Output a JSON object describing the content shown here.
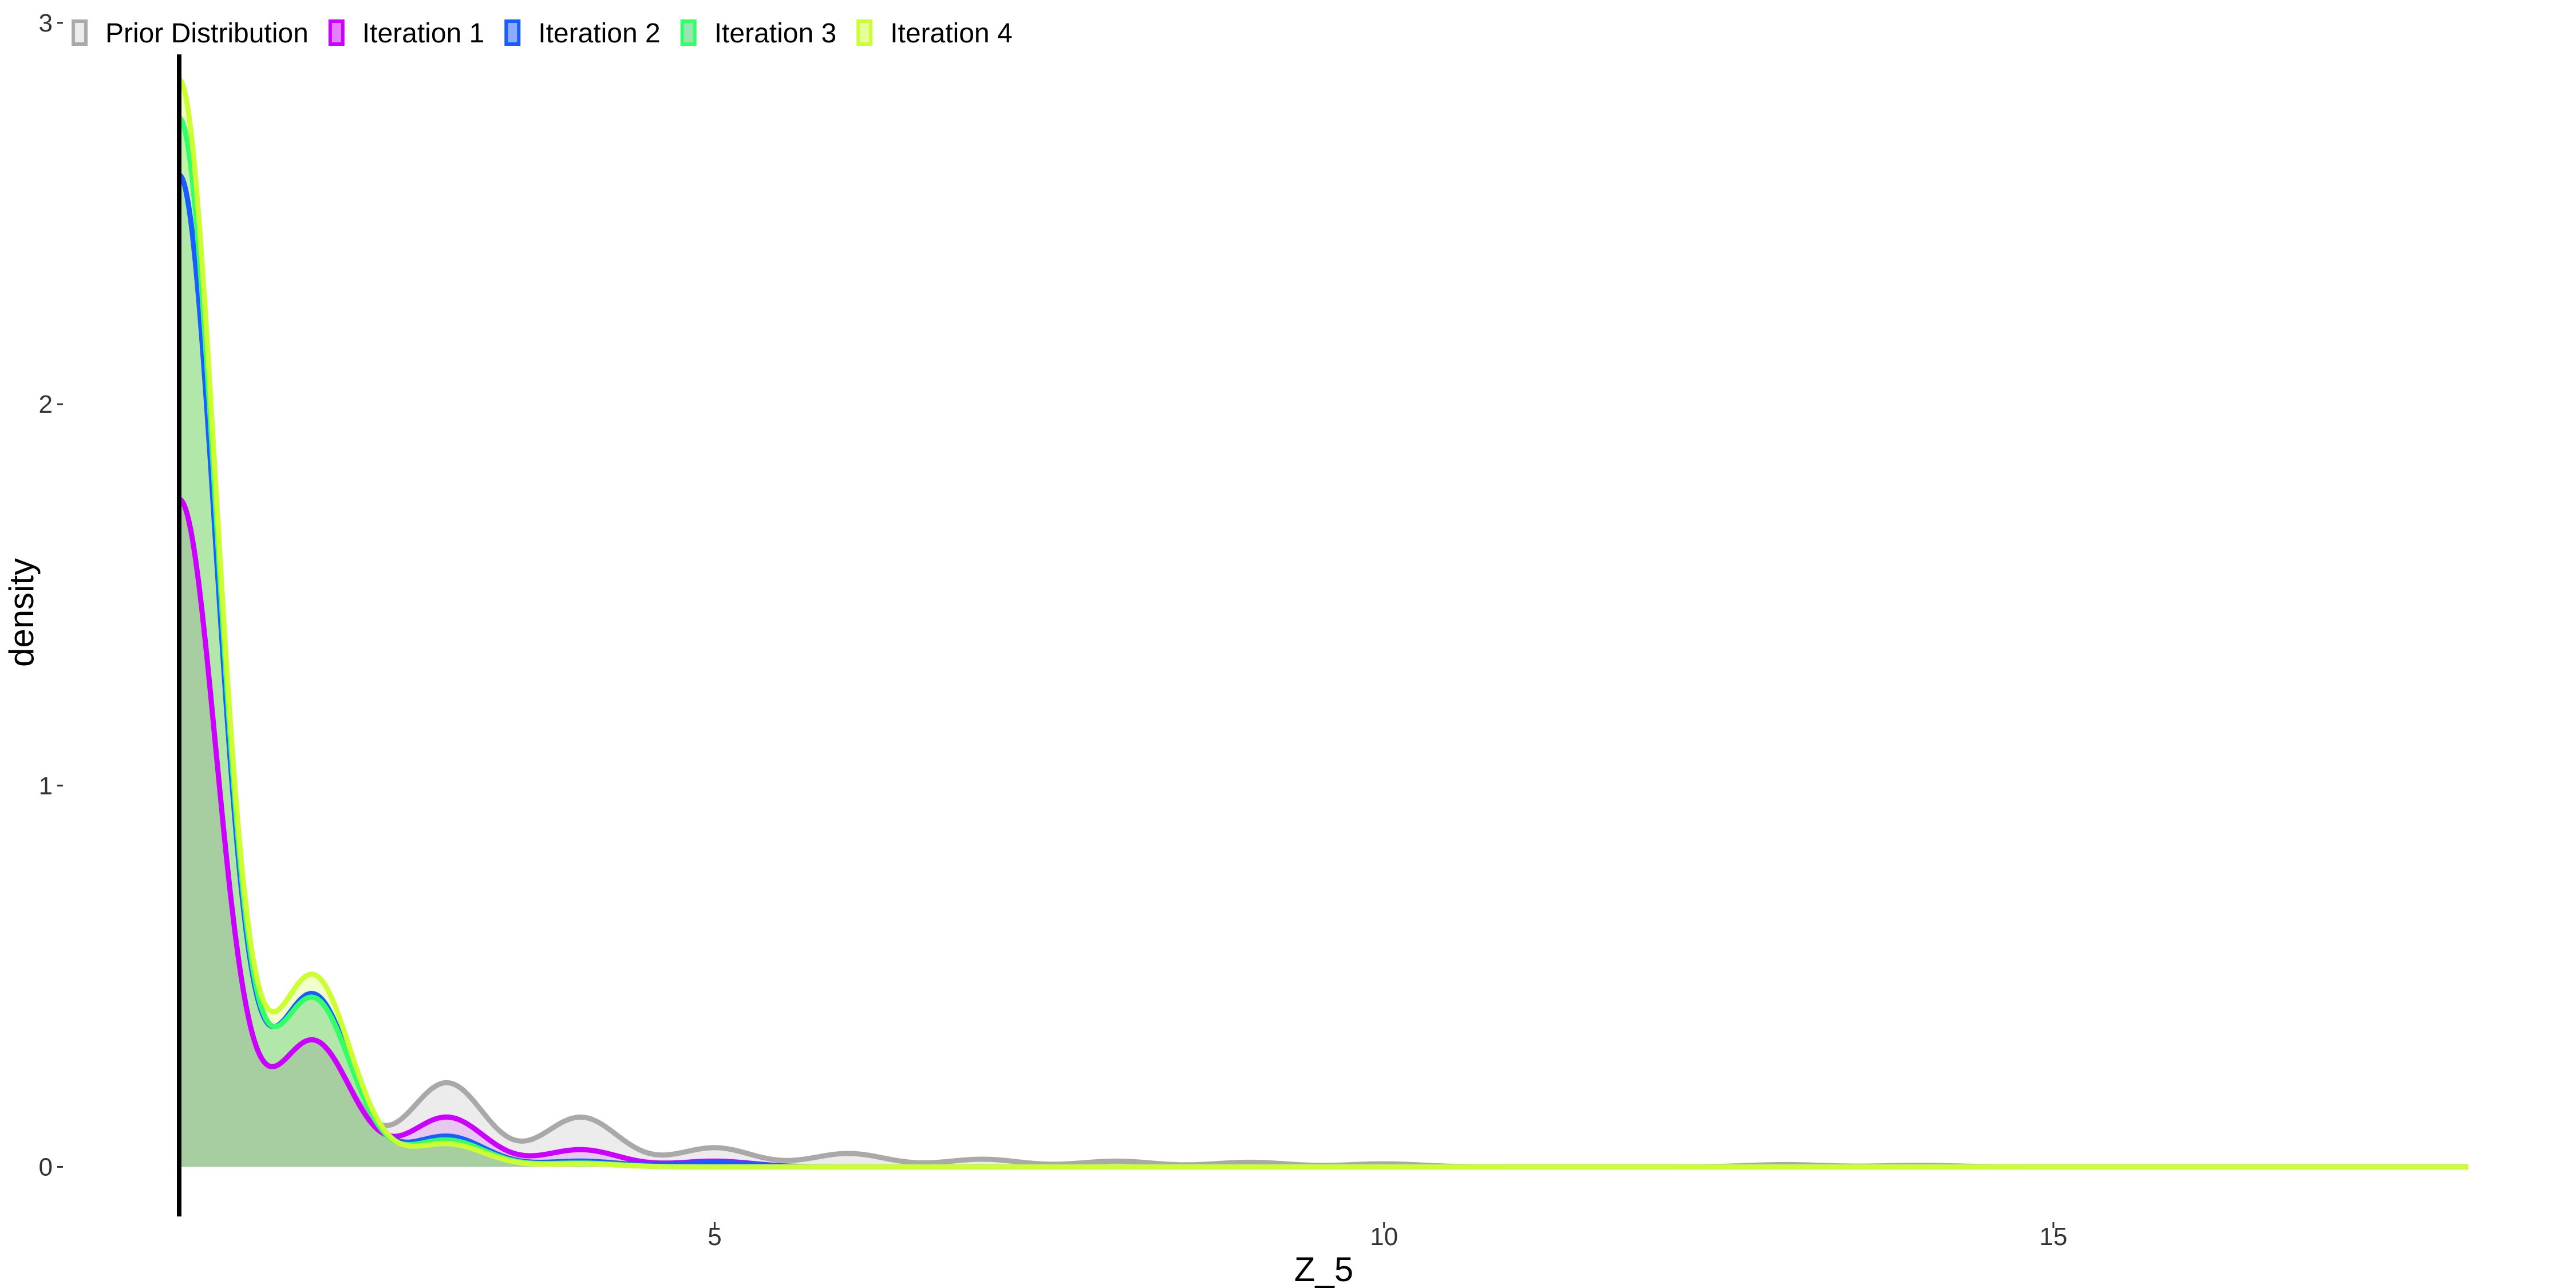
{
  "chart_data": {
    "type": "area",
    "xlabel": "Z_5",
    "ylabel": "density",
    "xlim": [
      1,
      18.1
    ],
    "ylim": [
      -0.13,
      3.0
    ],
    "x_ticks": [
      5,
      10,
      15
    ],
    "x_tick_labels": [
      "5",
      "10",
      "15"
    ],
    "y_ticks": [
      0,
      1,
      2,
      3
    ],
    "y_tick_labels": [
      "0",
      "1",
      "2",
      "3"
    ],
    "grid": false,
    "legend_position": "top-left",
    "peak_width": 0.28,
    "series": [
      {
        "name": "Prior Distribution",
        "color": "#a9a9a9",
        "fill": "#d9d9d9",
        "fill_opacity": 0.5,
        "peaks": [
          {
            "x": 1,
            "y": 1.75
          },
          {
            "x": 2,
            "y": 0.33
          },
          {
            "x": 3,
            "y": 0.22
          },
          {
            "x": 4,
            "y": 0.13
          },
          {
            "x": 5,
            "y": 0.05
          },
          {
            "x": 6,
            "y": 0.035
          },
          {
            "x": 7,
            "y": 0.02
          },
          {
            "x": 8,
            "y": 0.015
          },
          {
            "x": 9,
            "y": 0.012
          },
          {
            "x": 10,
            "y": 0.008
          },
          {
            "x": 13,
            "y": 0.006
          },
          {
            "x": 14,
            "y": 0.004
          }
        ]
      },
      {
        "name": "Iteration 1",
        "color": "#cc00ff",
        "fill": "#cc00ff",
        "fill_opacity": 0.15,
        "peaks": [
          {
            "x": 1,
            "y": 1.75
          },
          {
            "x": 2,
            "y": 0.33
          },
          {
            "x": 3,
            "y": 0.13
          },
          {
            "x": 4,
            "y": 0.045
          },
          {
            "x": 5,
            "y": 0.015
          }
        ]
      },
      {
        "name": "Iteration 2",
        "color": "#1a5cff",
        "fill": "#1a5cff",
        "fill_opacity": 0.15,
        "peaks": [
          {
            "x": 1,
            "y": 2.6
          },
          {
            "x": 2,
            "y": 0.45
          },
          {
            "x": 3,
            "y": 0.08
          },
          {
            "x": 4,
            "y": 0.015
          },
          {
            "x": 5,
            "y": 0.012
          }
        ]
      },
      {
        "name": "Iteration 3",
        "color": "#33ff66",
        "fill": "#33cc66",
        "fill_opacity": 0.3,
        "peaks": [
          {
            "x": 1,
            "y": 2.75
          },
          {
            "x": 2,
            "y": 0.44
          },
          {
            "x": 3,
            "y": 0.07
          },
          {
            "x": 4,
            "y": 0.01
          }
        ]
      },
      {
        "name": "Iteration 4",
        "color": "#ccff33",
        "fill": "#ccff33",
        "fill_opacity": 0.25,
        "peaks": [
          {
            "x": 1,
            "y": 2.85
          },
          {
            "x": 2,
            "y": 0.5
          },
          {
            "x": 3,
            "y": 0.06
          },
          {
            "x": 4,
            "y": 0.008
          }
        ]
      }
    ]
  }
}
